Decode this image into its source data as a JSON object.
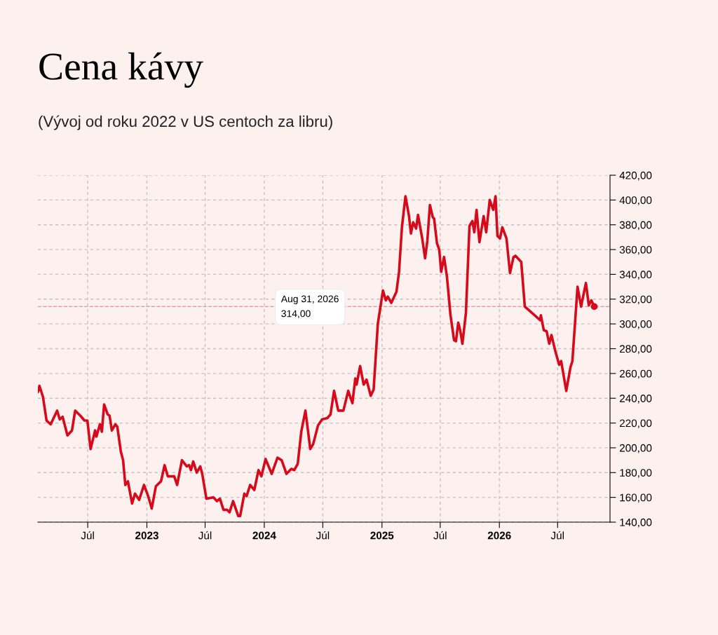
{
  "chart_data": {
    "type": "line",
    "title": "Cena kávy",
    "subtitle": "(Vývoj od roku 2022 v US centoch za libru)",
    "x": [
      "2022-01-27",
      "2022-02-01",
      "2022-02-12",
      "2022-02-23",
      "2022-03-08",
      "2022-03-17",
      "2022-03-28",
      "2022-04-05",
      "2022-04-14",
      "2022-04-29",
      "2022-05-13",
      "2022-05-23",
      "2022-06-08",
      "2022-06-21",
      "2022-06-30",
      "2022-07-10",
      "2022-07-24",
      "2022-07-28",
      "2022-08-08",
      "2022-08-14",
      "2022-08-21",
      "2022-09-01",
      "2022-09-07",
      "2022-09-14",
      "2022-09-25",
      "2022-10-01",
      "2022-10-12",
      "2022-10-19",
      "2022-10-26",
      "2022-11-03",
      "2022-11-16",
      "2022-11-25",
      "2022-12-08",
      "2022-12-23",
      "2023-01-05",
      "2023-01-16",
      "2023-01-29",
      "2023-02-14",
      "2023-02-25",
      "2023-03-07",
      "2023-03-27",
      "2023-04-05",
      "2023-04-20",
      "2023-05-05",
      "2023-05-12",
      "2023-05-18",
      "2023-05-25",
      "2023-06-05",
      "2023-06-16",
      "2023-06-22",
      "2023-07-05",
      "2023-07-27",
      "2023-08-07",
      "2023-08-16",
      "2023-08-27",
      "2023-09-07",
      "2023-09-15",
      "2023-09-26",
      "2023-10-12",
      "2023-10-18",
      "2023-10-31",
      "2023-11-07",
      "2023-11-18",
      "2023-12-01",
      "2023-12-14",
      "2023-12-23",
      "2024-01-05",
      "2024-01-24",
      "2024-02-11",
      "2024-02-24",
      "2024-03-10",
      "2024-03-25",
      "2024-04-03",
      "2024-04-14",
      "2024-04-25",
      "2024-05-08",
      "2024-05-23",
      "2024-06-01",
      "2024-06-16",
      "2024-06-29",
      "2024-07-15",
      "2024-07-25",
      "2024-08-05",
      "2024-08-18",
      "2024-09-03",
      "2024-09-18",
      "2024-10-01",
      "2024-10-10",
      "2024-10-14",
      "2024-10-25",
      "2024-11-05",
      "2024-11-14",
      "2024-11-27",
      "2024-12-06",
      "2024-12-19",
      "2025-01-04",
      "2025-01-13",
      "2025-01-19",
      "2025-01-30",
      "2025-02-15",
      "2025-02-23",
      "2025-03-04",
      "2025-03-15",
      "2025-03-26",
      "2025-04-01",
      "2025-04-08",
      "2025-04-17",
      "2025-04-23",
      "2025-05-06",
      "2025-05-15",
      "2025-05-22",
      "2025-05-30",
      "2025-06-08",
      "2025-06-12",
      "2025-06-21",
      "2025-06-28",
      "2025-07-04",
      "2025-07-13",
      "2025-07-22",
      "2025-08-02",
      "2025-08-13",
      "2025-08-19",
      "2025-08-26",
      "2025-09-01",
      "2025-09-08",
      "2025-09-19",
      "2025-09-30",
      "2025-10-09",
      "2025-10-15",
      "2025-10-22",
      "2025-10-31",
      "2025-11-13",
      "2025-11-21",
      "2025-12-02",
      "2025-12-13",
      "2025-12-20",
      "2025-12-26",
      "2026-01-03",
      "2026-01-10",
      "2026-01-23",
      "2026-02-03",
      "2026-02-14",
      "2026-02-20",
      "2026-03-10",
      "2026-03-21",
      "2026-05-08",
      "2026-05-10",
      "2026-05-19",
      "2026-05-28",
      "2026-06-05",
      "2026-06-12",
      "2026-06-25",
      "2026-07-06",
      "2026-07-12",
      "2026-07-28",
      "2026-08-10",
      "2026-08-16",
      "2026-09-01",
      "2026-09-12",
      "2026-09-27",
      "2026-10-06",
      "2026-10-14",
      "2026-10-23"
    ],
    "series": [
      {
        "color": "#d50b1b",
        "values": [
          245,
          250,
          241,
          222,
          219,
          224,
          230,
          223,
          225,
          210,
          214,
          230,
          226,
          222,
          222,
          199,
          214,
          209,
          219,
          213,
          235,
          227,
          226,
          214,
          219,
          217,
          197,
          190,
          170,
          173,
          155,
          163,
          158,
          170,
          161,
          151,
          169,
          173,
          186,
          177,
          177,
          170,
          190,
          185,
          186,
          182,
          189,
          180,
          185,
          179,
          159,
          160,
          157,
          159,
          150,
          150,
          148,
          157,
          145,
          145,
          163,
          161,
          170,
          166,
          182,
          177,
          191,
          179,
          192,
          190,
          179,
          183,
          182,
          187,
          213,
          230,
          199,
          203,
          218,
          223,
          224,
          227,
          246,
          230,
          230,
          246,
          236,
          256,
          251,
          266,
          251,
          255,
          242,
          247,
          300,
          327,
          319,
          322,
          317,
          326,
          342,
          378,
          403,
          387,
          373,
          382,
          377,
          388,
          369,
          353,
          367,
          396,
          386,
          385,
          365,
          360,
          342,
          354,
          338,
          307,
          287,
          286,
          301,
          295,
          284,
          309,
          379,
          383,
          374,
          392,
          366,
          387,
          374,
          400,
          392,
          403,
          371,
          369,
          378,
          369,
          341,
          354,
          355,
          350,
          314,
          303,
          307,
          295,
          294,
          284,
          291,
          277,
          267,
          270,
          246,
          265,
          270,
          330,
          314,
          333,
          315,
          319,
          314
        ]
      }
    ],
    "xlim": [
      "2022-01-27",
      "2026-12-11"
    ],
    "xticks": [
      {
        "value": "2022-07-01",
        "label": "Júl"
      },
      {
        "value": "2023-01-01",
        "label": "2023"
      },
      {
        "value": "2023-07-01",
        "label": "Júl"
      },
      {
        "value": "2024-01-01",
        "label": "2024"
      },
      {
        "value": "2024-07-01",
        "label": "Júl"
      },
      {
        "value": "2025-01-01",
        "label": "2025"
      },
      {
        "value": "2025-07-01",
        "label": "Júl"
      },
      {
        "value": "2026-01-01",
        "label": "2026"
      },
      {
        "value": "2026-07-01",
        "label": "Júl"
      }
    ],
    "ylim": [
      140,
      420
    ],
    "yticks": [
      {
        "value": 140,
        "label": "140,00"
      },
      {
        "value": 160,
        "label": "160,00"
      },
      {
        "value": 180,
        "label": "180,00"
      },
      {
        "value": 200,
        "label": "200,00"
      },
      {
        "value": 220,
        "label": "220,00"
      },
      {
        "value": 240,
        "label": "240,00"
      },
      {
        "value": 260,
        "label": "260,00"
      },
      {
        "value": 280,
        "label": "280,00"
      },
      {
        "value": 300,
        "label": "300,00"
      },
      {
        "value": 320,
        "label": "320,00"
      },
      {
        "value": 340,
        "label": "340,00"
      },
      {
        "value": 360,
        "label": "360,00"
      },
      {
        "value": 380,
        "label": "380,00"
      },
      {
        "value": 400,
        "label": "400,00"
      },
      {
        "value": 420,
        "label": "420,00"
      }
    ],
    "grid": true,
    "line_style": "solid",
    "ref_lines": [
      {
        "axis": "y",
        "value": 314,
        "color": "#f08c96",
        "line_style": "dashed"
      }
    ],
    "annotations": [
      "Aug 31, 2026\n314,00"
    ]
  }
}
